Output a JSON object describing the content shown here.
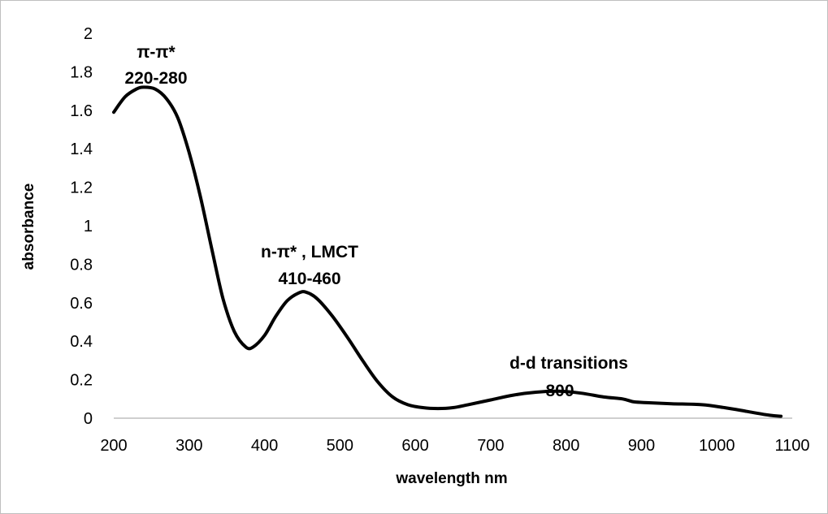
{
  "chart_data": {
    "type": "line",
    "title": "",
    "xlabel": "wavelength nm",
    "ylabel": "absorbance",
    "xlim": [
      200,
      1100
    ],
    "ylim": [
      0,
      2
    ],
    "x_ticks": [
      200,
      300,
      400,
      500,
      600,
      700,
      800,
      900,
      1000,
      1100
    ],
    "y_ticks": [
      0,
      0.2,
      0.4,
      0.6,
      0.8,
      1,
      1.2,
      1.4,
      1.6,
      1.8,
      2
    ],
    "grid": false,
    "legend": "none",
    "line_color": "#000000",
    "series": [
      {
        "x": [
          200,
          215,
          230,
          240,
          255,
          270,
          285,
          300,
          315,
          330,
          345,
          360,
          375,
          385,
          400,
          415,
          430,
          445,
          455,
          470,
          490,
          510,
          530,
          550,
          570,
          590,
          610,
          630,
          650,
          670,
          700,
          730,
          760,
          790,
          820,
          850,
          875,
          890,
          910,
          940,
          980,
          1010,
          1040,
          1070,
          1085
        ],
        "y": [
          1.59,
          1.67,
          1.71,
          1.72,
          1.71,
          1.66,
          1.56,
          1.38,
          1.15,
          0.88,
          0.62,
          0.45,
          0.37,
          0.37,
          0.43,
          0.53,
          0.61,
          0.65,
          0.655,
          0.62,
          0.53,
          0.42,
          0.3,
          0.19,
          0.11,
          0.07,
          0.055,
          0.05,
          0.055,
          0.07,
          0.095,
          0.12,
          0.135,
          0.14,
          0.13,
          0.11,
          0.1,
          0.085,
          0.08,
          0.075,
          0.07,
          0.055,
          0.035,
          0.015,
          0.01
        ]
      }
    ],
    "annotations": [
      {
        "line1": "π-π*",
        "line2": "220-280"
      },
      {
        "line1": "n-π* , LMCT",
        "line2": "410-460"
      },
      {
        "line1": "d-d transitions",
        "line2": "800"
      }
    ]
  }
}
